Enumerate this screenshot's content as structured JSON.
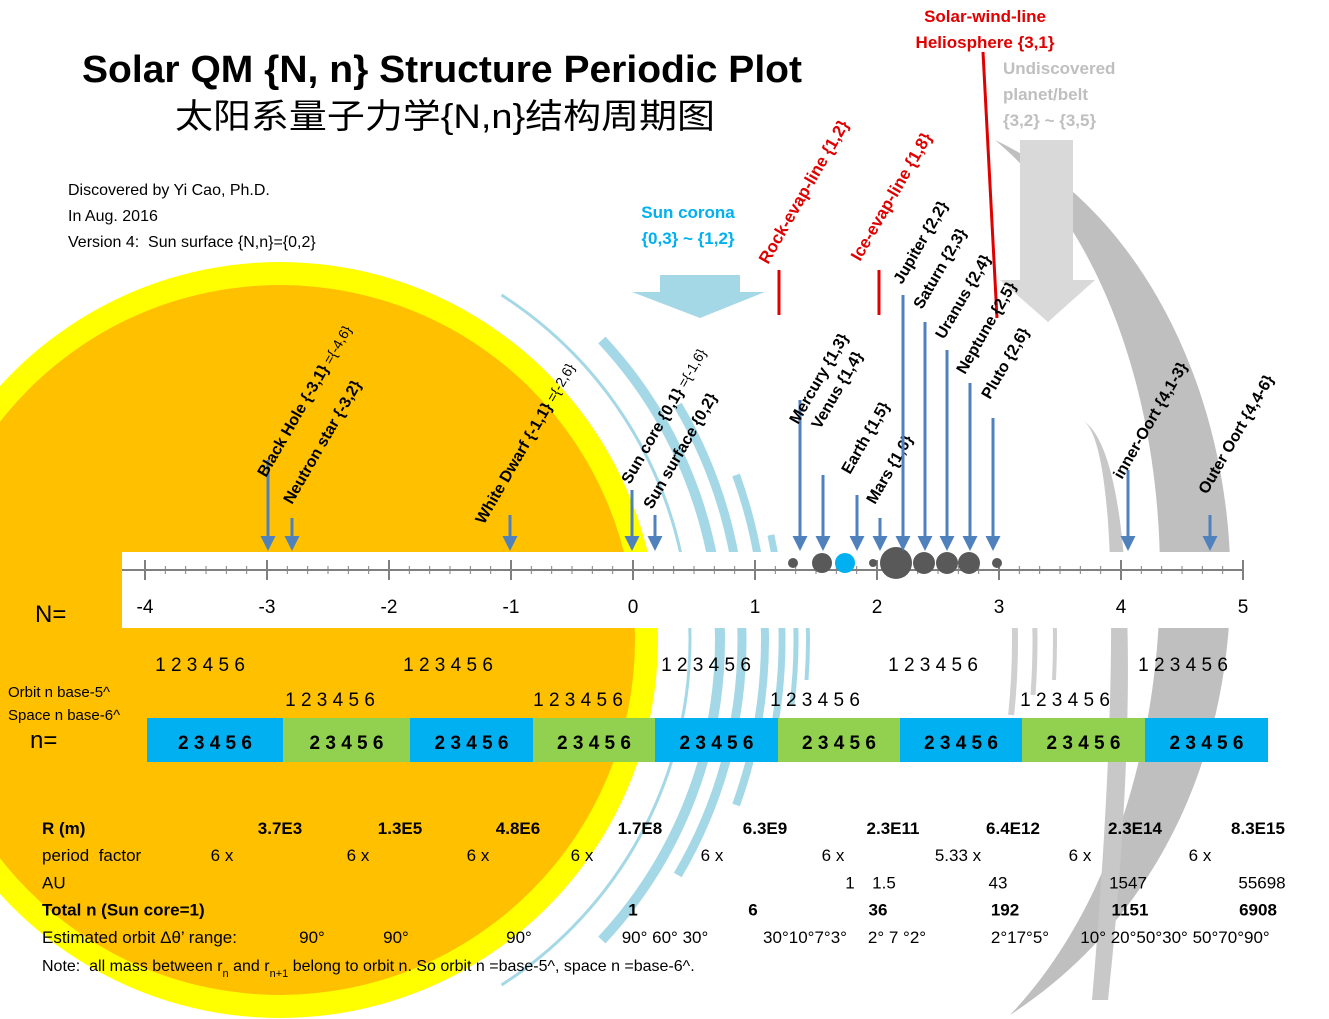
{
  "title": "Solar QM {N, n} Structure Periodic Plot",
  "subtitle": "太阳系量子力学{N,n}结构周期图",
  "credits": [
    "Discovered by Yi Cao, Ph.D.",
    "In Aug. 2016",
    "Version 4:  Sun surface {N,n}={0,2}"
  ],
  "corona": [
    "Sun corona",
    "{0,3} ~ {1,2}"
  ],
  "red_lines": [
    "Rock-evap-line {1,2}",
    "Ice-evap-line {1,8}"
  ],
  "solar_wind": [
    "Solar-wind-line",
    "Heliosphere {3,1}"
  ],
  "undiscovered": [
    "Undiscovered",
    "planet/belt",
    "{3,2} ~ {3,5}"
  ],
  "objects": [
    {
      "label": "Black Hole {-3,1}",
      "note": " ={-4,6}"
    },
    {
      "label": "Neutron star {-3,2}"
    },
    {
      "label": "White Dwarf {-1,1}",
      "note": " ={-2,6}"
    },
    {
      "label": "Sun core {0,1}",
      "note": " ={-1,6}"
    },
    {
      "label": "Sun surface {0,2}"
    },
    {
      "label": "Mercury {1,3}"
    },
    {
      "label": "Venus {1,4}"
    },
    {
      "label": "Earth {1,5}"
    },
    {
      "label": "Mars {1,6}"
    },
    {
      "label": "Jupiter {2,2}"
    },
    {
      "label": "Saturn {2,3}"
    },
    {
      "label": "Uranus {2,4}"
    },
    {
      "label": "Neptune {2,5}"
    },
    {
      "label": "Pluto {2,6}"
    },
    {
      "label": "inner-Oort {4,1-3}"
    },
    {
      "label": "Outer Oort {4,4-6}"
    }
  ],
  "axis": {
    "label": "N=",
    "ticks": [
      -4,
      -3,
      -2,
      -1,
      0,
      1,
      2,
      3,
      4,
      5
    ]
  },
  "orbit_label": "Orbit n base-5^",
  "space_label": "Space n base-6^",
  "orbit_digits": [
    "1 2 3 4 5 6",
    "1 2 3 4 5 6",
    "1 2 3 4 5 6",
    "1 2 3 4 5 6",
    "1 2 3 4 5 6"
  ],
  "space_digits": [
    "1 2 3 4 5 6",
    "1 2 3 4 5 6",
    "1 2 3 4 5 6",
    "1 2 3 4 5 6"
  ],
  "n_label": "n=",
  "boxes": [
    {
      "text": "2 3 4 5 6",
      "color": "#00b0f0"
    },
    {
      "text": "2 3 4 5 6",
      "color": "#92d050"
    },
    {
      "text": "2 3 4 5 6",
      "color": "#00b0f0"
    },
    {
      "text": "2 3 4 5 6",
      "color": "#92d050"
    },
    {
      "text": "2 3 4 5 6",
      "color": "#00b0f0"
    },
    {
      "text": "2 3 4 5 6",
      "color": "#92d050"
    },
    {
      "text": "2 3 4 5 6",
      "color": "#00b0f0"
    },
    {
      "text": "2 3 4 5 6",
      "color": "#92d050"
    },
    {
      "text": "2 3 4 5 6",
      "color": "#00b0f0"
    }
  ],
  "table": {
    "rows": [
      {
        "label": "R (m)",
        "cells": [
          "3.7E3",
          "1.3E5",
          "4.8E6",
          "1.7E8",
          "6.3E9",
          "2.3E11",
          "6.4E12",
          "2.3E14",
          "8.3E15"
        ]
      },
      {
        "label": "period  factor",
        "cells": [
          "6 x",
          "6 x",
          "6 x",
          "6 x",
          "6 x",
          "6 x",
          "5.33 x",
          "6 x",
          "6 x"
        ]
      },
      {
        "label": "AU",
        "cells": [
          "1",
          "1.5",
          "43",
          "1547",
          "55698"
        ]
      },
      {
        "label": "Total n (Sun core=1)",
        "cells": [
          "1",
          "6",
          "36",
          "192",
          "1151",
          "6908"
        ]
      },
      {
        "label": "Estimated orbit Δθ’ range:",
        "cells": [
          "90°",
          "90°",
          "90°",
          "90° 60° 30°",
          "30°10°7°3°",
          "2° 7 °2°",
          "2°17°5°",
          "10° 20°50°30° 50°70°90°"
        ]
      }
    ]
  },
  "note": [
    "Note:  all mass between r",
    "n",
    " and r",
    "n+1",
    " belong to orbit n. So orbit n =base-5^, space n =base-6^."
  ]
}
